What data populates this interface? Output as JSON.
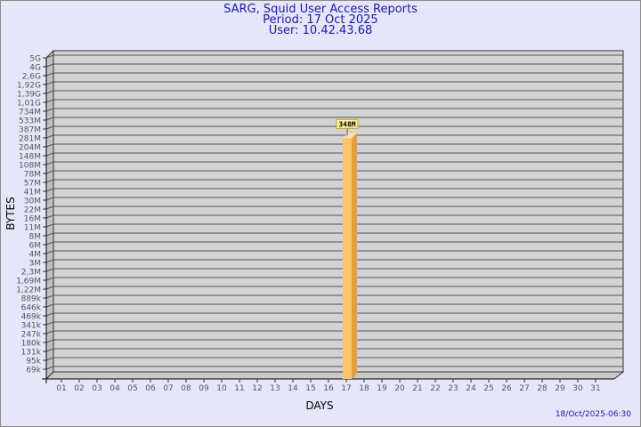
{
  "header": {
    "title": "SARG, Squid User Access Reports",
    "period": "Period: 17 Oct 2025",
    "user": "User: 10.42.43.68"
  },
  "footer": {
    "timestamp": "18/Oct/2025-06:30"
  },
  "colors": {
    "title": "#1a1aa6",
    "background": "#e6e6fa",
    "plot": "#d3d3d3",
    "bar": "#f9c46b",
    "bar_side": "#e0a040",
    "label_box": "#fff7a0"
  },
  "chart_data": {
    "type": "bar",
    "xlabel": "DAYS",
    "ylabel": "BYTES",
    "y_scale": "log",
    "y_tick_labels": [
      "5G",
      "4G",
      "2,6G",
      "1,92G",
      "1,39G",
      "1,01G",
      "734M",
      "533M",
      "387M",
      "281M",
      "204M",
      "148M",
      "108M",
      "78M",
      "57M",
      "41M",
      "30M",
      "22M",
      "16M",
      "11M",
      "8M",
      "6M",
      "4M",
      "3M",
      "2,3M",
      "1,69M",
      "1,22M",
      "889k",
      "646k",
      "469k",
      "341k",
      "247k",
      "180k",
      "131k",
      "95k",
      "69k"
    ],
    "categories": [
      "01",
      "02",
      "03",
      "04",
      "05",
      "06",
      "07",
      "08",
      "09",
      "10",
      "11",
      "12",
      "13",
      "14",
      "15",
      "16",
      "17",
      "18",
      "19",
      "20",
      "21",
      "22",
      "23",
      "24",
      "25",
      "26",
      "27",
      "28",
      "29",
      "30",
      "31"
    ],
    "values": [
      0,
      0,
      0,
      0,
      0,
      0,
      0,
      0,
      0,
      0,
      0,
      0,
      0,
      0,
      0,
      0,
      348000000,
      0,
      0,
      0,
      0,
      0,
      0,
      0,
      0,
      0,
      0,
      0,
      0,
      0,
      0
    ],
    "data_labels": {
      "17": "348M"
    },
    "grid": true,
    "legend": "none"
  }
}
